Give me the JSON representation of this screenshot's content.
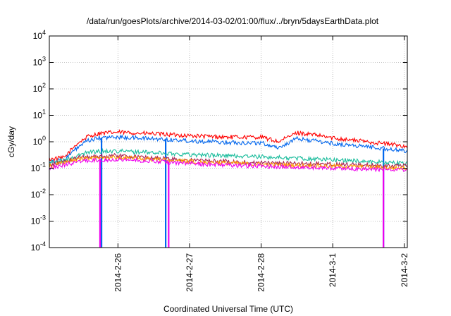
{
  "chart_data": {
    "type": "line",
    "title": "/data/run/goesPlots/archive/2014-03-02/01:00/flux/../bryn/5daysEarthData.plot",
    "xlabel": "Coordinated Universal Time (UTC)",
    "ylabel": "cGy/day",
    "yscale": "log",
    "ylim": [
      0.0001,
      10000
    ],
    "xlim": [
      "2014-02-25T01:00",
      "2014-03-02T01:00"
    ],
    "grid": true,
    "y_ticks": [
      {
        "value": 0.0001,
        "base": "10",
        "exp": "-4"
      },
      {
        "value": 0.001,
        "base": "10",
        "exp": "-3"
      },
      {
        "value": 0.01,
        "base": "10",
        "exp": "-2"
      },
      {
        "value": 0.1,
        "base": "10",
        "exp": "-1"
      },
      {
        "value": 1,
        "base": "10",
        "exp": "0"
      },
      {
        "value": 10,
        "base": "10",
        "exp": "1"
      },
      {
        "value": 100,
        "base": "10",
        "exp": "2"
      },
      {
        "value": 1000,
        "base": "10",
        "exp": "3"
      },
      {
        "value": 10000,
        "base": "10",
        "exp": "4"
      }
    ],
    "x_ticks": [
      {
        "label": "2014-2-26",
        "value": "2014-02-26T00:00"
      },
      {
        "label": "2014-2-27",
        "value": "2014-02-27T00:00"
      },
      {
        "label": "2014-2-28",
        "value": "2014-02-28T00:00"
      },
      {
        "label": "2014-3-1",
        "value": "2014-03-01T00:00"
      },
      {
        "label": "2014-3-2",
        "value": "2014-03-02T00:00"
      }
    ],
    "series": [
      {
        "color": "#ff0000",
        "x": [
          "2014-02-25T01:00",
          "2014-02-25T06:00",
          "2014-02-25T10:00",
          "2014-02-25T14:00",
          "2014-02-25T18:00",
          "2014-02-26T00:00",
          "2014-02-26T12:00",
          "2014-02-27T00:00",
          "2014-02-27T12:00",
          "2014-02-28T00:00",
          "2014-02-28T06:00",
          "2014-02-28T09:00",
          "2014-02-28T12:00",
          "2014-02-28T18:00",
          "2014-03-01T00:00",
          "2014-03-01T12:00",
          "2014-03-02T00:00",
          "2014-03-02T01:00"
        ],
        "y": [
          0.22,
          0.25,
          0.8,
          1.6,
          2.1,
          2.3,
          2.0,
          1.7,
          1.5,
          1.5,
          1.0,
          1.5,
          2.2,
          1.8,
          1.4,
          1.0,
          0.7,
          0.6
        ]
      },
      {
        "color": "#0066ee",
        "x": [
          "2014-02-25T01:00",
          "2014-02-25T06:00",
          "2014-02-25T10:00",
          "2014-02-25T14:00",
          "2014-02-25T18:00",
          "2014-02-26T00:00",
          "2014-02-26T12:00",
          "2014-02-27T00:00",
          "2014-02-27T12:00",
          "2014-02-28T00:00",
          "2014-02-28T06:00",
          "2014-02-28T09:00",
          "2014-02-28T12:00",
          "2014-02-28T18:00",
          "2014-03-01T00:00",
          "2014-03-01T12:00",
          "2014-03-02T00:00",
          "2014-03-02T01:00"
        ],
        "y": [
          0.18,
          0.2,
          0.55,
          1.1,
          1.4,
          1.5,
          1.3,
          1.1,
          0.95,
          0.9,
          0.6,
          0.9,
          1.3,
          1.1,
          0.85,
          0.65,
          0.45,
          0.4
        ],
        "drops": [
          "2014-02-25T18:30",
          "2014-02-26T16:00",
          "2014-03-01T17:00"
        ]
      },
      {
        "color": "#1abc9c",
        "x": [
          "2014-02-25T01:00",
          "2014-02-25T08:00",
          "2014-02-25T14:00",
          "2014-02-26T00:00",
          "2014-02-27T00:00",
          "2014-02-28T00:00",
          "2014-03-01T00:00",
          "2014-03-02T01:00"
        ],
        "y": [
          0.16,
          0.22,
          0.42,
          0.45,
          0.33,
          0.27,
          0.21,
          0.15
        ]
      },
      {
        "color": "#aa2255",
        "x": [
          "2014-02-25T01:00",
          "2014-02-25T12:00",
          "2014-02-26T00:00",
          "2014-02-27T00:00",
          "2014-02-28T00:00",
          "2014-03-01T00:00",
          "2014-03-02T01:00"
        ],
        "y": [
          0.13,
          0.27,
          0.3,
          0.2,
          0.16,
          0.14,
          0.12
        ]
      },
      {
        "color": "#ff9900",
        "x": [
          "2014-02-25T01:00",
          "2014-02-25T12:00",
          "2014-02-26T00:00",
          "2014-02-27T00:00",
          "2014-02-28T00:00",
          "2014-03-01T00:00",
          "2014-03-02T01:00"
        ],
        "y": [
          0.12,
          0.23,
          0.26,
          0.18,
          0.14,
          0.12,
          0.1
        ]
      },
      {
        "color": "#ee00ee",
        "x": [
          "2014-02-25T01:00",
          "2014-02-25T12:00",
          "2014-02-26T00:00",
          "2014-02-27T00:00",
          "2014-02-28T00:00",
          "2014-03-01T00:00",
          "2014-03-02T01:00"
        ],
        "y": [
          0.1,
          0.19,
          0.22,
          0.15,
          0.12,
          0.1,
          0.085
        ],
        "drops": [
          "2014-02-25T18:00",
          "2014-02-26T17:00",
          "2014-03-01T17:00"
        ]
      }
    ]
  }
}
